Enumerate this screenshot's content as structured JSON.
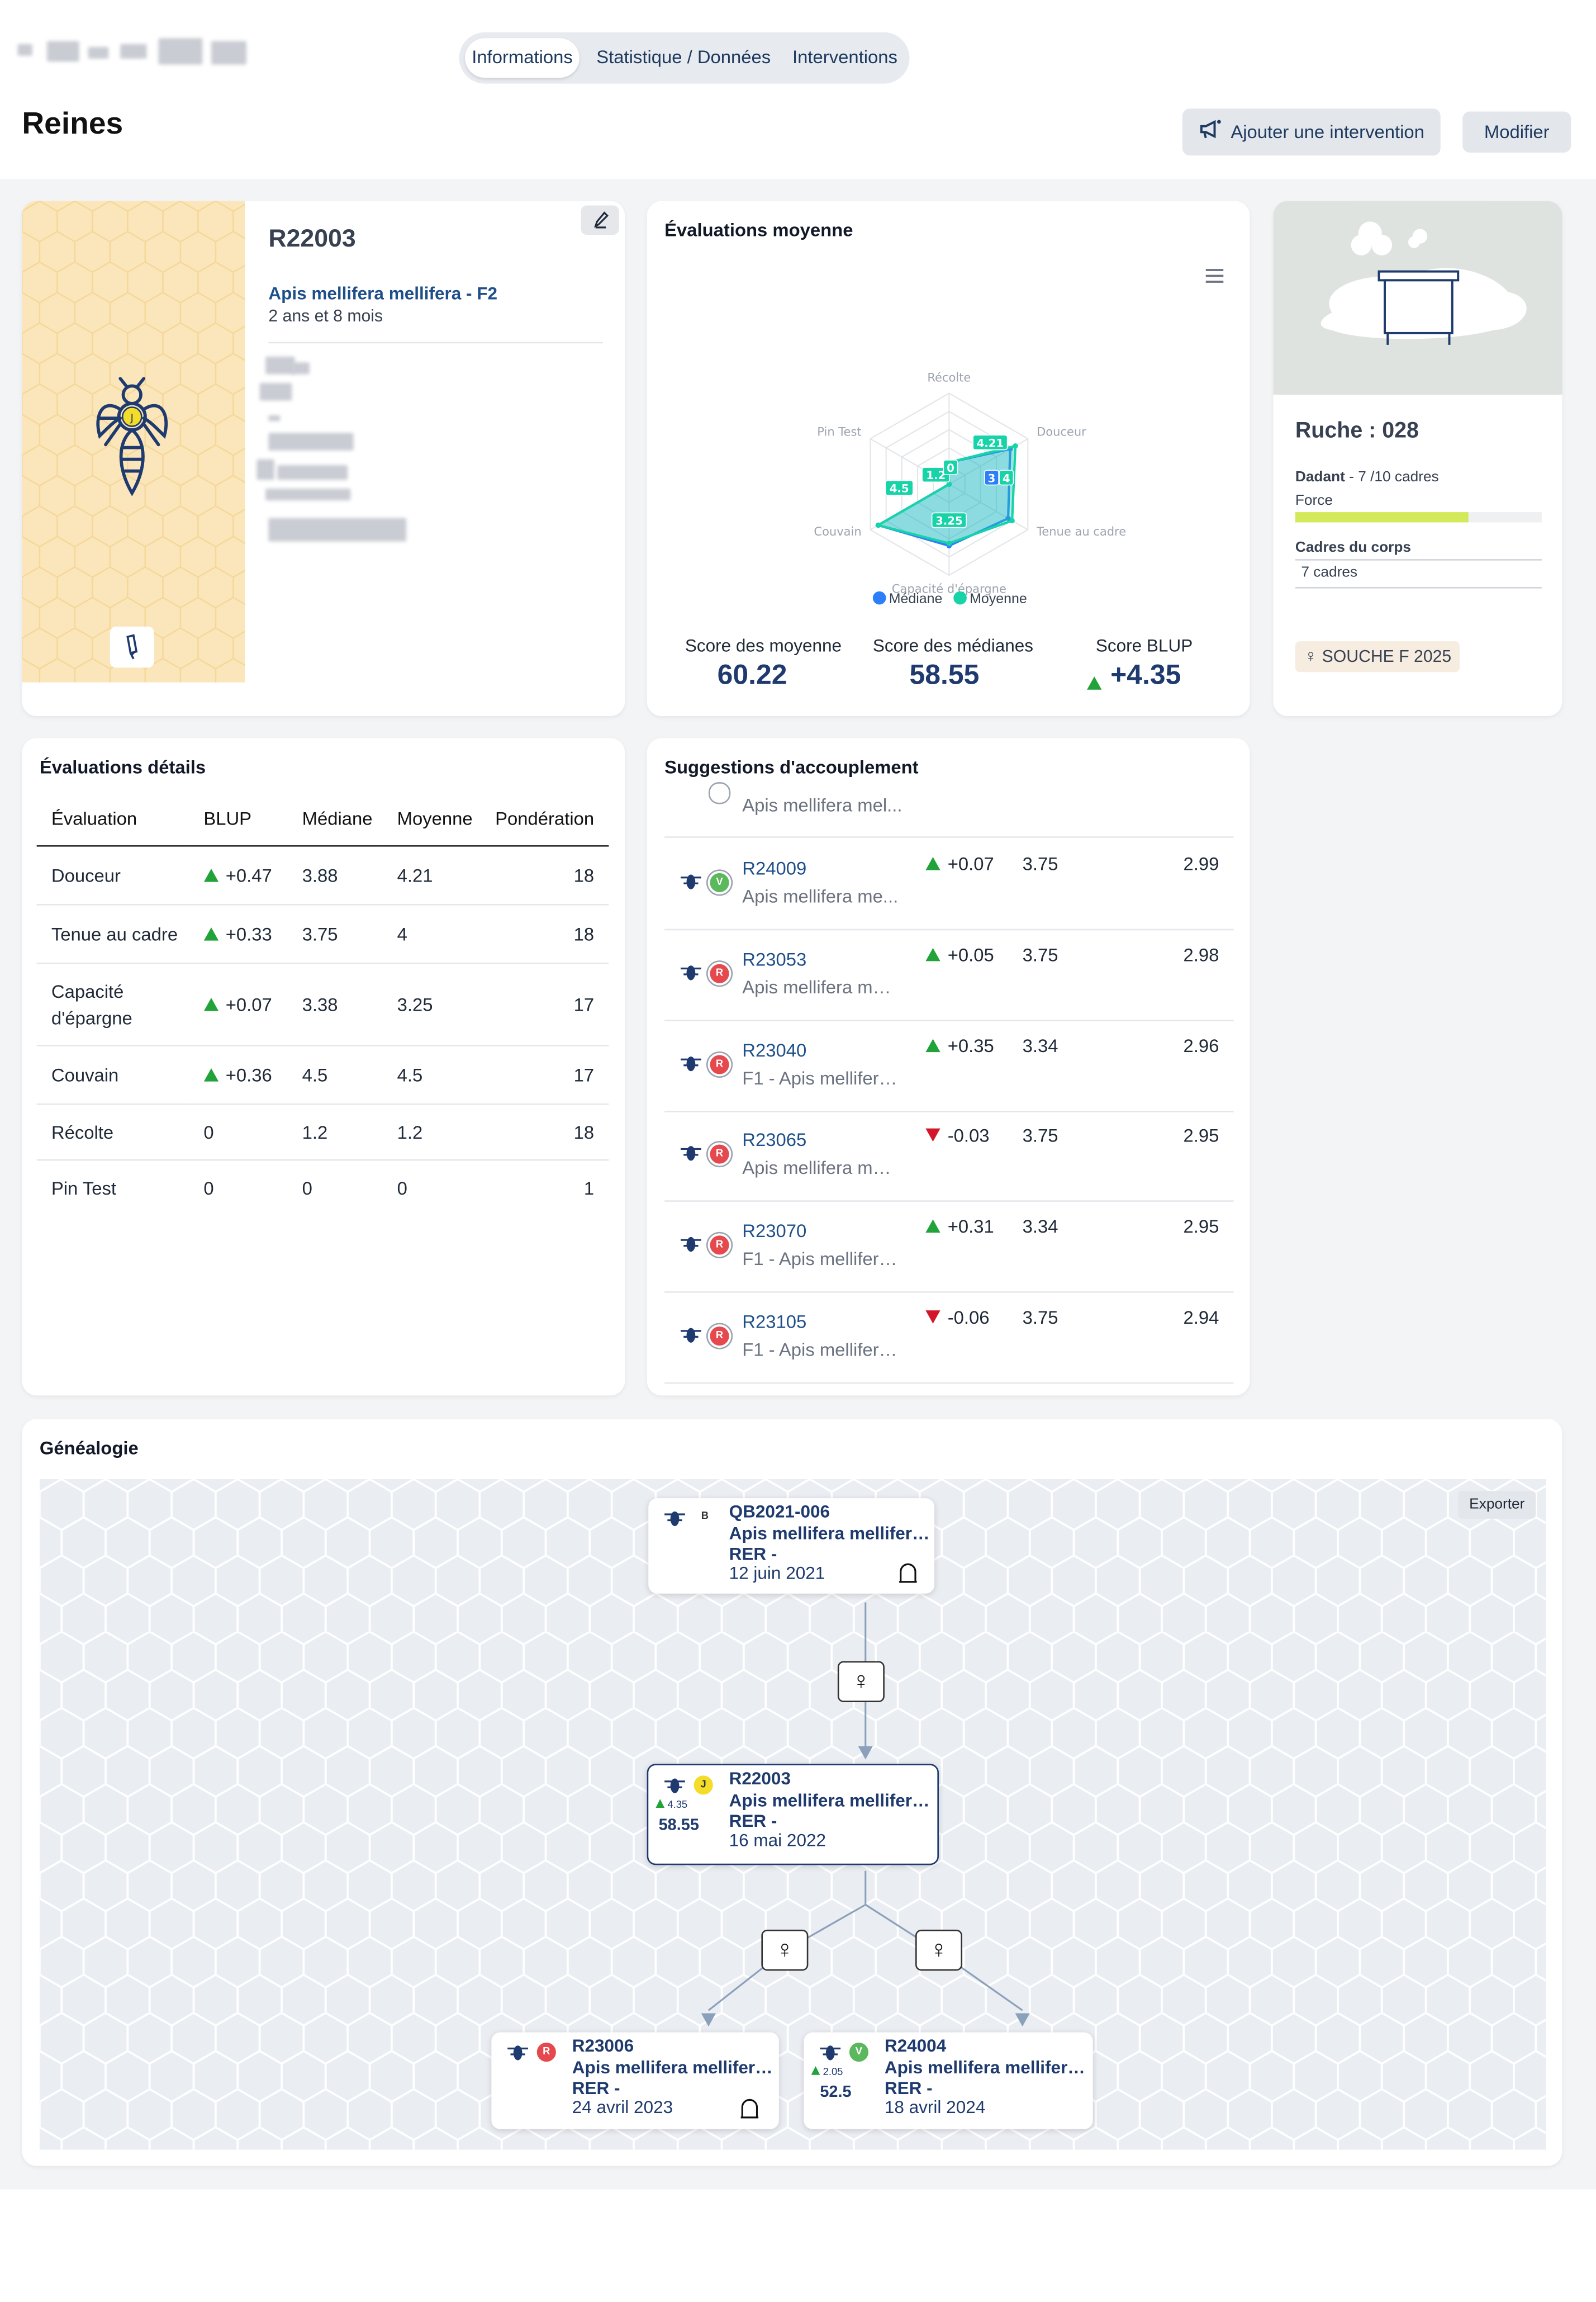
{
  "header": {
    "tabs": [
      "Informations",
      "Statistique / Données",
      "Interventions"
    ],
    "active_tab": "Informations",
    "page_title": "Reines",
    "add_intervention_label": "Ajouter une intervention",
    "edit_label": "Modifier"
  },
  "queen": {
    "id": "R22003",
    "race": "Apis mellifera mellifera - F2",
    "age": "2 ans et 8 mois",
    "color_badge": "J"
  },
  "radar": {
    "title": "Évaluations moyenne",
    "legend_median": "Médiane",
    "legend_mean": "Moyenne",
    "score_mean_label": "Score des moyenne",
    "score_mean": "60.22",
    "score_median_label": "Score des médianes",
    "score_median": "58.55",
    "score_blup_label": "Score BLUP",
    "score_blup": "+4.35",
    "colors": {
      "median": "#2d7ff9",
      "mean": "#17d3a8"
    }
  },
  "chart_data": {
    "type": "radar",
    "axes": [
      "Récolte",
      "Douceur",
      "Tenue au cadre",
      "Capacité d'épargne",
      "Couvain",
      "Pin Test"
    ],
    "max": 5,
    "series": [
      {
        "name": "Médiane",
        "values": [
          1.2,
          3.88,
          3.75,
          3.38,
          4.5,
          0
        ]
      },
      {
        "name": "Moyenne",
        "values": [
          1.2,
          4.21,
          4,
          3.25,
          4.5,
          0
        ]
      }
    ],
    "data_labels": [
      "1.2",
      "4.21",
      "3",
      "4",
      "3.25",
      "4.5",
      "0"
    ]
  },
  "hive": {
    "title": "Ruche : 028",
    "type_bold": "Dadant",
    "type_rest": " - 7 /10 cadres",
    "force_label": "Force",
    "force_fraction": 0.7,
    "cadres_label": "Cadres du corps",
    "cadres_value": "7 cadres",
    "souche": "SOUCHE F 2025"
  },
  "details": {
    "title": "Évaluations détails",
    "headers": [
      "Évaluation",
      "BLUP",
      "Médiane",
      "Moyenne",
      "Pondération"
    ],
    "rows": [
      {
        "name": "Douceur",
        "blup": "+0.47",
        "trend": "up",
        "median": "3.88",
        "mean": "4.21",
        "weight": "18"
      },
      {
        "name": "Tenue au cadre",
        "blup": "+0.33",
        "trend": "up",
        "median": "3.75",
        "mean": "4",
        "weight": "18"
      },
      {
        "name": "Capacité d'épargne",
        "blup": "+0.07",
        "trend": "up",
        "median": "3.38",
        "mean": "3.25",
        "weight": "17"
      },
      {
        "name": "Couvain",
        "blup": "+0.36",
        "trend": "up",
        "median": "4.5",
        "mean": "4.5",
        "weight": "17"
      },
      {
        "name": "Récolte",
        "blup": "0",
        "trend": "",
        "median": "1.2",
        "mean": "1.2",
        "weight": "18"
      },
      {
        "name": "Pin Test",
        "blup": "0",
        "trend": "",
        "median": "0",
        "mean": "0",
        "weight": "1"
      }
    ]
  },
  "suggestions": {
    "title": "Suggestions d'accouplement",
    "partial_sub": "Apis mellifera mel...",
    "rows": [
      {
        "id": "R24009",
        "sub": "Apis mellifera me...",
        "badge": "V",
        "badge_color": "#5cb85c",
        "trend": "up",
        "blup": "+0.07",
        "median": "3.75",
        "score": "2.99"
      },
      {
        "id": "R23053",
        "sub": "Apis mellifera mel...",
        "badge": "R",
        "badge_color": "#e5484d",
        "trend": "up",
        "blup": "+0.05",
        "median": "3.75",
        "score": "2.98"
      },
      {
        "id": "R23040",
        "sub": "F1 - Apis mellifera...",
        "badge": "R",
        "badge_color": "#e5484d",
        "trend": "up",
        "blup": "+0.35",
        "median": "3.34",
        "score": "2.96"
      },
      {
        "id": "R23065",
        "sub": "Apis mellifera mel...",
        "badge": "R",
        "badge_color": "#e5484d",
        "trend": "down",
        "blup": "-0.03",
        "median": "3.75",
        "score": "2.95"
      },
      {
        "id": "R23070",
        "sub": "F1 - Apis mellifera...",
        "badge": "R",
        "badge_color": "#e5484d",
        "trend": "up",
        "blup": "+0.31",
        "median": "3.34",
        "score": "2.95"
      },
      {
        "id": "R23105",
        "sub": "F1 - Apis mellifera...",
        "badge": "R",
        "badge_color": "#e5484d",
        "trend": "down",
        "blup": "-0.06",
        "median": "3.75",
        "score": "2.94"
      }
    ]
  },
  "genealogy": {
    "title": "Généalogie",
    "export_label": "Exporter",
    "female_symbol": "♀",
    "parent": {
      "id": "QB2021-006",
      "line": "Apis mellifera mellifera -...",
      "rer": "RER -",
      "date": "12 juin 2021",
      "badge": "B"
    },
    "current": {
      "id": "R22003",
      "line": "Apis mellifera mellifera -...",
      "rer": "RER -",
      "date": "16 mai 2022",
      "badge": "J",
      "blup": "4.35",
      "score": "58.55"
    },
    "children": [
      {
        "id": "R23006",
        "line": "Apis mellifera mellifera -...",
        "rer": "RER -",
        "date": "24 avril 2023",
        "badge": "R"
      },
      {
        "id": "R24004",
        "line": "Apis mellifera mellifera -...",
        "rer": "RER -",
        "date": "18 avril 2024",
        "badge": "V",
        "blup": "2.05",
        "score": "52.5"
      }
    ]
  }
}
